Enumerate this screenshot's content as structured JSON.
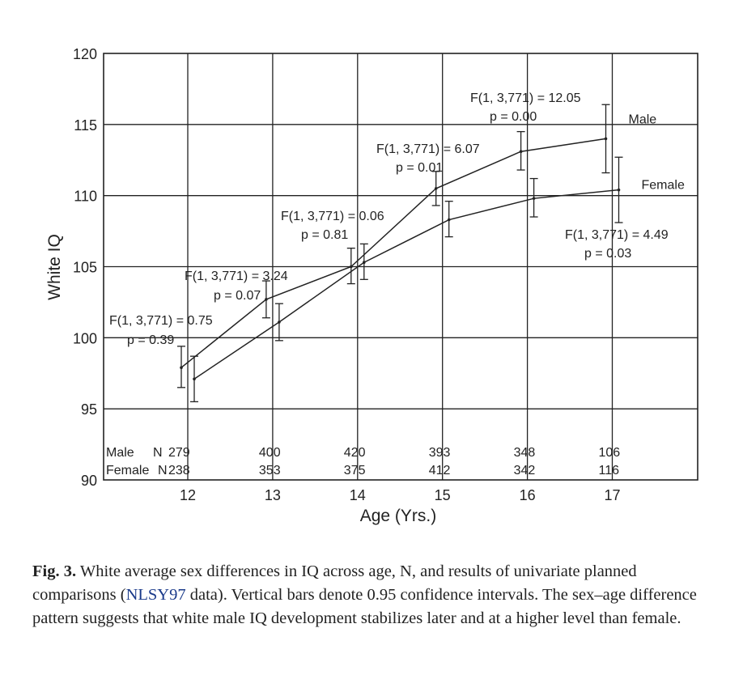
{
  "chart_data": {
    "type": "line",
    "ylabel": "White IQ",
    "xlabel": "Age (Yrs.)",
    "x": [
      12,
      13,
      14,
      15,
      16,
      17
    ],
    "ylim": [
      90,
      120
    ],
    "y_ticks": [
      90,
      95,
      100,
      105,
      110,
      115,
      120
    ],
    "x_ticks": [
      12,
      13,
      14,
      15,
      16,
      17
    ],
    "grid": true,
    "series": [
      {
        "name": "Male",
        "color": "#222222",
        "values": [
          97.9,
          102.7,
          105.0,
          110.5,
          113.1,
          114.0
        ],
        "ci_low": [
          96.5,
          101.4,
          103.8,
          109.3,
          111.8,
          111.6
        ],
        "ci_high": [
          99.4,
          104.0,
          106.3,
          111.7,
          114.5,
          116.4
        ]
      },
      {
        "name": "Female",
        "color": "#222222",
        "values": [
          97.1,
          101.1,
          105.3,
          108.3,
          109.8,
          110.4
        ],
        "ci_low": [
          95.5,
          99.8,
          104.1,
          107.1,
          108.5,
          108.1
        ],
        "ci_high": [
          98.7,
          102.4,
          106.6,
          109.6,
          111.2,
          112.7
        ]
      }
    ],
    "annotations": [
      {
        "f": "F(1, 3,771) = 0.75",
        "p": "p = 0.39"
      },
      {
        "f": "F(1, 3,771) = 3.24",
        "p": "p = 0.07"
      },
      {
        "f": "F(1, 3,771) = 0.06",
        "p": "p = 0.81"
      },
      {
        "f": "F(1, 3,771) = 6.07",
        "p": "p = 0.01"
      },
      {
        "f": "F(1, 3,771) = 12.05",
        "p": "p = 0.00"
      },
      {
        "f": "F(1, 3,771) = 4.49",
        "p": "p = 0.03"
      }
    ],
    "n_table": {
      "male_label": "Male",
      "female_label": "Female",
      "n_label": "N",
      "male_n": [
        279,
        400,
        420,
        393,
        348,
        106
      ],
      "female_n": [
        238,
        353,
        375,
        412,
        342,
        116
      ]
    }
  },
  "caption": {
    "label": "Fig. 3.",
    "text_before_link": " White average sex differences in IQ across age, N, and results of univariate planned comparisons (",
    "link": "NLSY97",
    "text_after_link": " data). Vertical bars denote 0.95 confidence intervals. The sex–age difference pattern suggests that white male IQ development stabilizes later and at a higher level than female."
  }
}
